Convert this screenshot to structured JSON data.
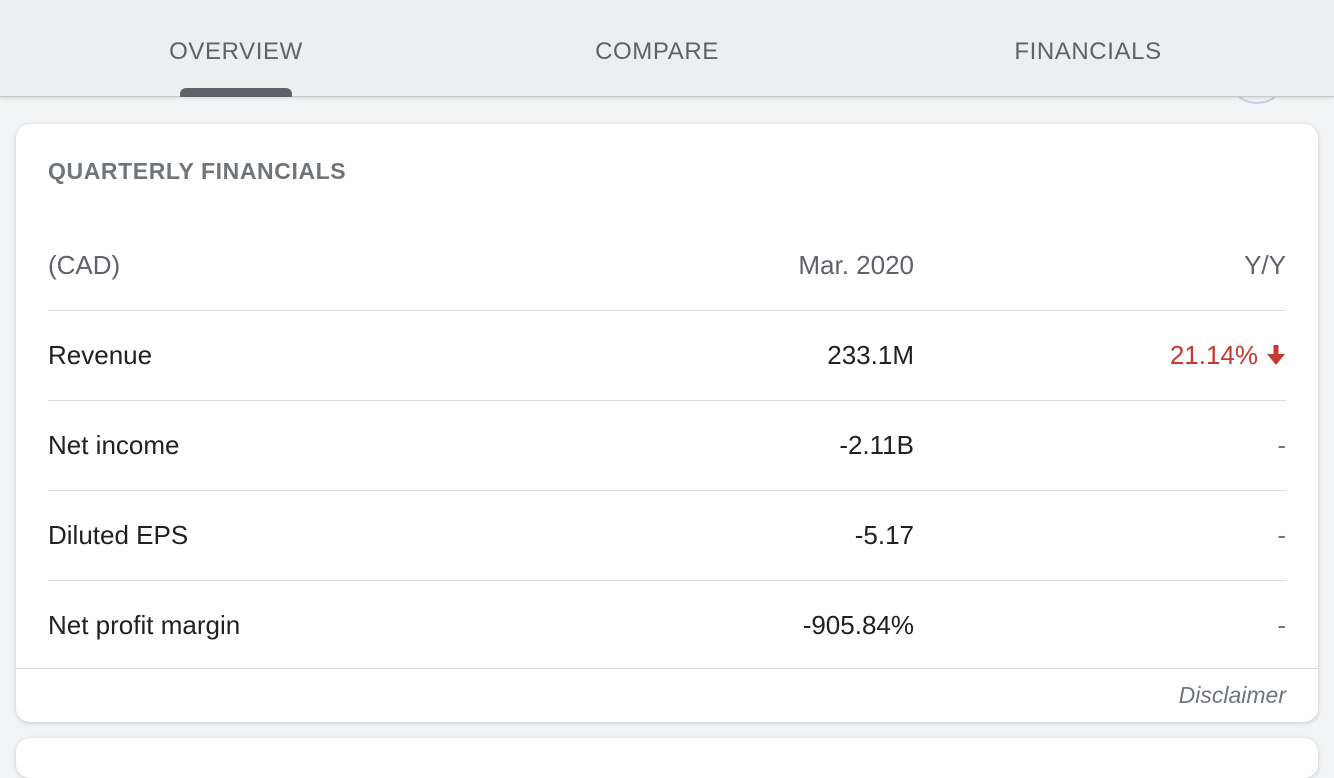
{
  "tabs": [
    {
      "label": "OVERVIEW",
      "selected": true
    },
    {
      "label": "COMPARE",
      "selected": false
    },
    {
      "label": "FINANCIALS",
      "selected": false
    }
  ],
  "card": {
    "title": "QUARTERLY FINANCIALS",
    "header": {
      "currency": "(CAD)",
      "period": "Mar. 2020",
      "change": "Y/Y"
    },
    "rows": [
      {
        "label": "Revenue",
        "value": "233.1M",
        "change": "21.14%",
        "direction": "down"
      },
      {
        "label": "Net income",
        "value": "-2.11B",
        "change": "-"
      },
      {
        "label": "Diluted EPS",
        "value": "-5.17",
        "change": "-"
      },
      {
        "label": "Net profit margin",
        "value": "-905.84%",
        "change": "-"
      }
    ],
    "disclaimer": "Disclaimer"
  },
  "colors": {
    "negative": "#c5392f",
    "indicator": "#5f6368"
  },
  "icons": {
    "down_arrow": "arrow-down-icon"
  }
}
